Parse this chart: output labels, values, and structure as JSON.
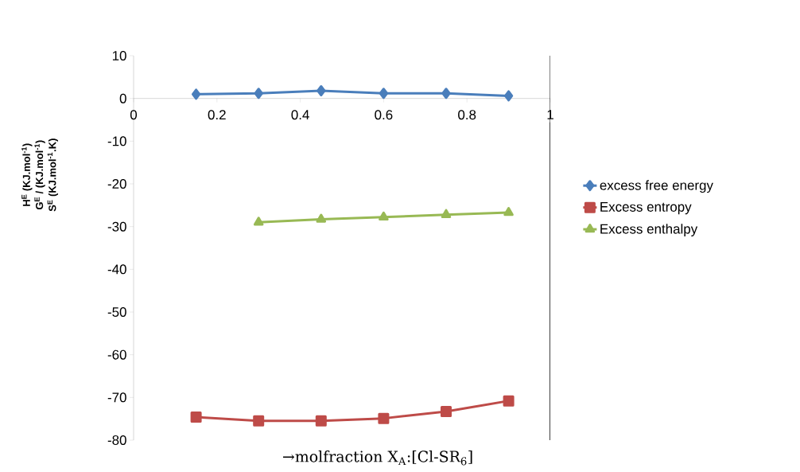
{
  "chart_data": {
    "type": "line",
    "xlabel": "→molfraction X$_{A}$:[Cl-SR$_{6}$]",
    "ylabel": [
      "H$^{E}$ (KJ.mol$^{-1}$)",
      "G$^{E}$ / (KJ.mol$^{-1}$)",
      "S$^{E}$ (KJ.mol$^{-1}$.K)"
    ],
    "x": [
      0.15,
      0.3,
      0.45,
      0.6,
      0.75,
      0.9
    ],
    "series": [
      {
        "name": "excess free energy",
        "color": "#4a7ebb",
        "marker": "diamond",
        "values": [
          1.0,
          1.2,
          1.8,
          1.2,
          1.2,
          0.6
        ]
      },
      {
        "name": "Excess entropy",
        "color": "#be4b48",
        "marker": "square",
        "values": [
          -74.6,
          -75.5,
          -75.5,
          -74.9,
          -73.3,
          -70.8
        ]
      },
      {
        "name": "Excess enthalpy",
        "color": "#98b954",
        "marker": "triangle",
        "values": [
          null,
          -29.0,
          -28.3,
          -27.8,
          -27.2,
          -26.7
        ]
      }
    ],
    "xlim": [
      0,
      1
    ],
    "xticks": [
      0,
      0.2,
      0.4,
      0.6,
      0.8,
      1
    ],
    "ylim": [
      -80,
      10
    ],
    "yticks": [
      -80,
      -70,
      -60,
      -50,
      -40,
      -30,
      -20,
      -10,
      0,
      10
    ],
    "ref_lines": [
      {
        "axis": "x",
        "value": 1,
        "color": "#000000"
      }
    ],
    "grid": false,
    "legend": "right"
  }
}
